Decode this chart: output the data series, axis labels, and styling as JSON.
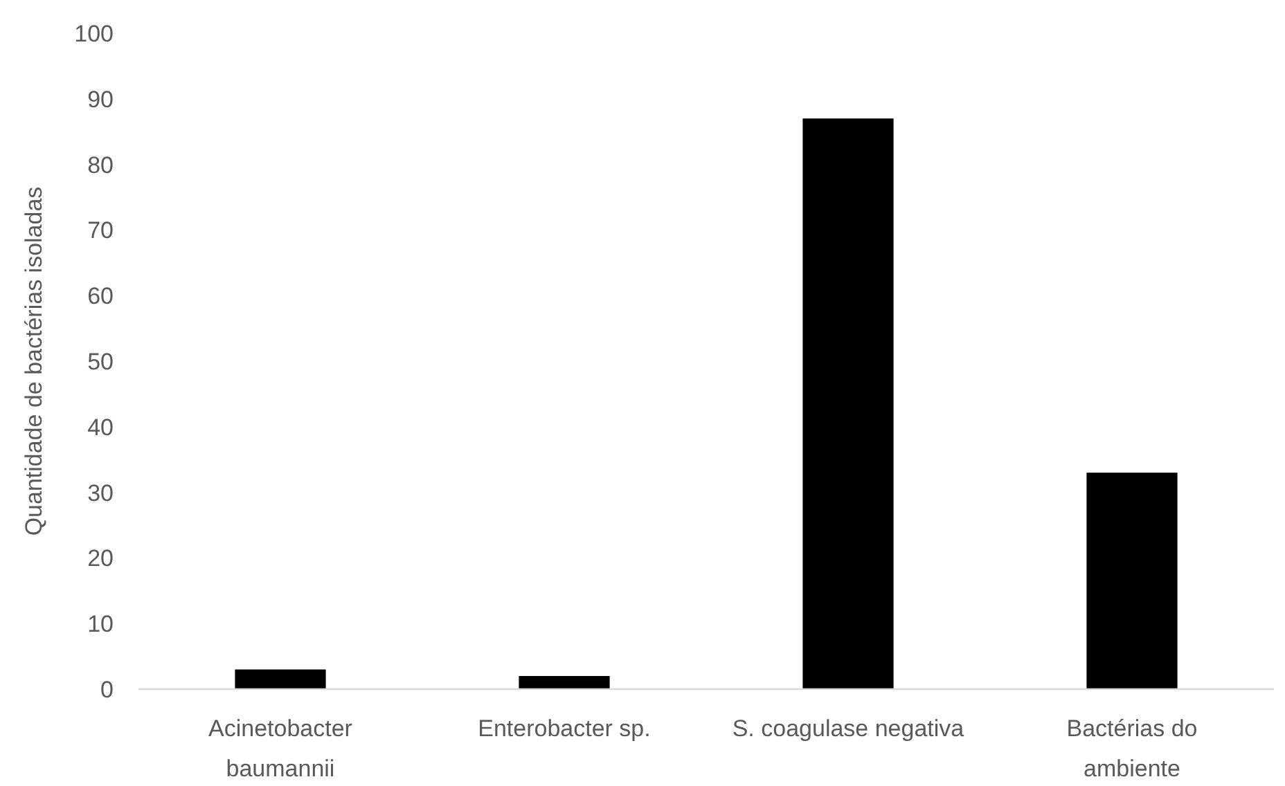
{
  "chart_data": {
    "type": "bar",
    "ylabel": "Quantidade de bactérias isoladas",
    "categories": [
      "Acinetobacter baumannii",
      "Enterobacter sp.",
      "S. coagulase negativa",
      "Bactérias do ambiente"
    ],
    "values": [
      3,
      2,
      87,
      33
    ],
    "color": "#000000",
    "ylim": [
      0,
      100
    ],
    "yticks": [
      0,
      10,
      20,
      30,
      40,
      50,
      60,
      70,
      80,
      90,
      100
    ],
    "grid": false
  }
}
